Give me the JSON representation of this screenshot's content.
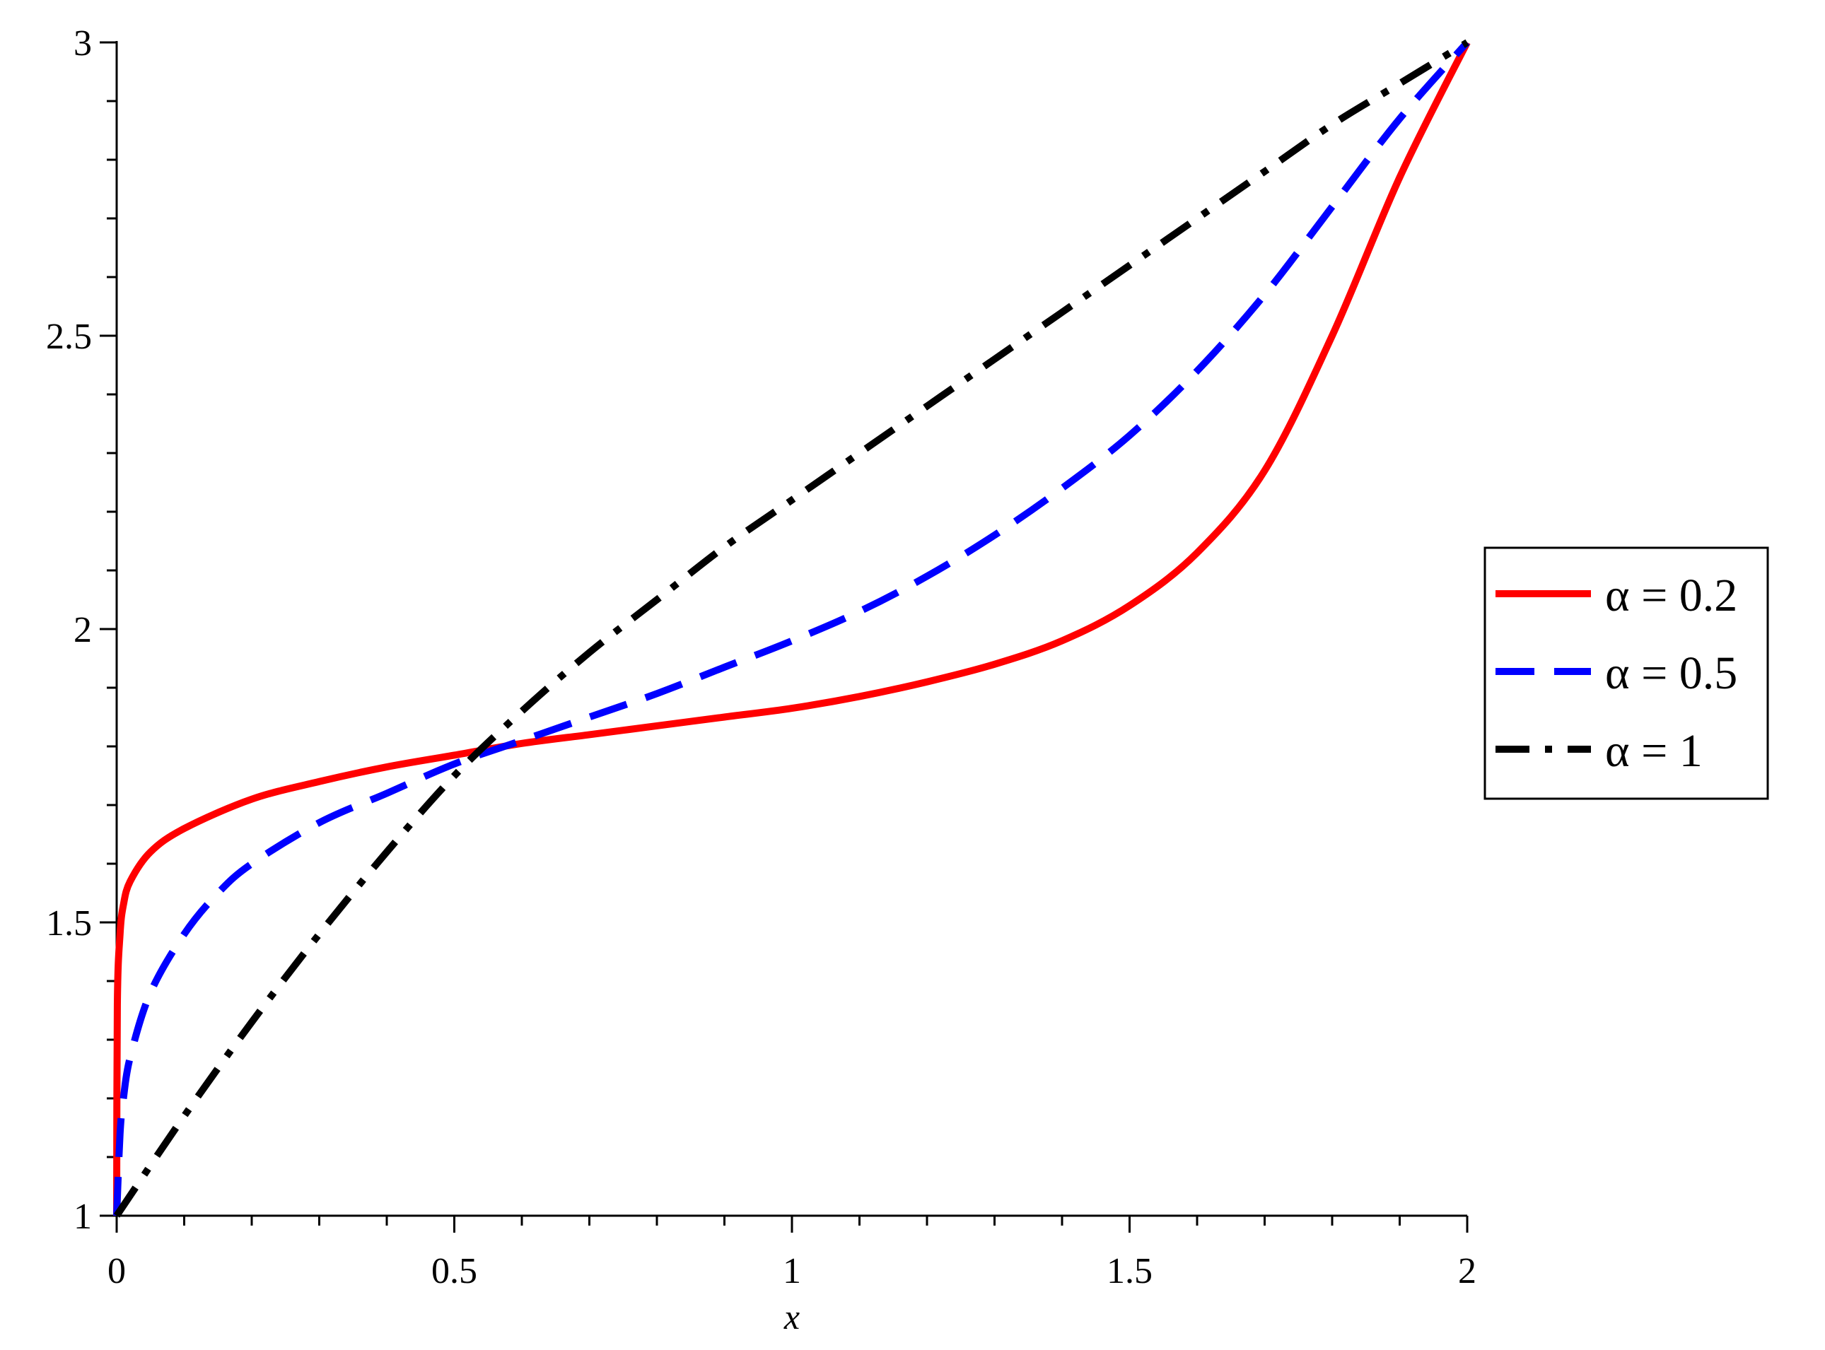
{
  "chart_data": {
    "type": "line",
    "title": "",
    "xlabel": "x",
    "ylabel": "",
    "xlim": [
      0,
      2
    ],
    "ylim": [
      1,
      3
    ],
    "x_ticks": [
      "0",
      "0.5",
      "1",
      "1.5",
      "2"
    ],
    "y_ticks": [
      "1",
      "1.5",
      "2",
      "2.5",
      "3"
    ],
    "grid": false,
    "legend_position": "right",
    "series": [
      {
        "name": "α = 0.2",
        "color": "#ff0000",
        "style": "solid",
        "x": [
          0,
          0.001,
          0.005,
          0.01,
          0.02,
          0.05,
          0.1,
          0.2,
          0.3,
          0.4,
          0.5,
          0.6,
          0.7,
          0.8,
          0.9,
          1.0,
          1.1,
          1.2,
          1.3,
          1.4,
          1.5,
          1.6,
          1.7,
          1.8,
          1.9,
          2.0
        ],
        "y": [
          1.0,
          1.36,
          1.48,
          1.53,
          1.57,
          1.62,
          1.66,
          1.71,
          1.74,
          1.765,
          1.785,
          1.805,
          1.82,
          1.835,
          1.85,
          1.865,
          1.885,
          1.91,
          1.94,
          1.98,
          2.04,
          2.13,
          2.27,
          2.5,
          2.77,
          3.0
        ]
      },
      {
        "name": "α = 0.5",
        "color": "#0000ff",
        "style": "dash",
        "x": [
          0,
          0.005,
          0.01,
          0.02,
          0.05,
          0.1,
          0.15,
          0.2,
          0.3,
          0.4,
          0.5,
          0.6,
          0.7,
          0.8,
          0.9,
          1.0,
          1.1,
          1.2,
          1.3,
          1.4,
          1.5,
          1.6,
          1.7,
          1.8,
          1.9,
          2.0
        ],
        "y": [
          1.0,
          1.14,
          1.2,
          1.27,
          1.38,
          1.48,
          1.55,
          1.6,
          1.67,
          1.72,
          1.77,
          1.81,
          1.85,
          1.89,
          1.935,
          1.98,
          2.03,
          2.09,
          2.16,
          2.24,
          2.33,
          2.44,
          2.57,
          2.72,
          2.87,
          3.0
        ]
      },
      {
        "name": "α = 1",
        "color": "#000000",
        "style": "dashdot",
        "x": [
          0,
          0.1,
          0.2,
          0.3,
          0.4,
          0.5,
          0.6,
          0.7,
          0.8,
          0.9,
          1.0,
          1.1,
          1.2,
          1.3,
          1.4,
          1.5,
          1.6,
          1.7,
          1.8,
          1.9,
          2.0
        ],
        "y": [
          1.0,
          1.17,
          1.33,
          1.48,
          1.62,
          1.75,
          1.86,
          1.96,
          2.05,
          2.14,
          2.22,
          2.3,
          2.38,
          2.46,
          2.54,
          2.62,
          2.7,
          2.78,
          2.86,
          2.93,
          3.0
        ]
      }
    ]
  }
}
